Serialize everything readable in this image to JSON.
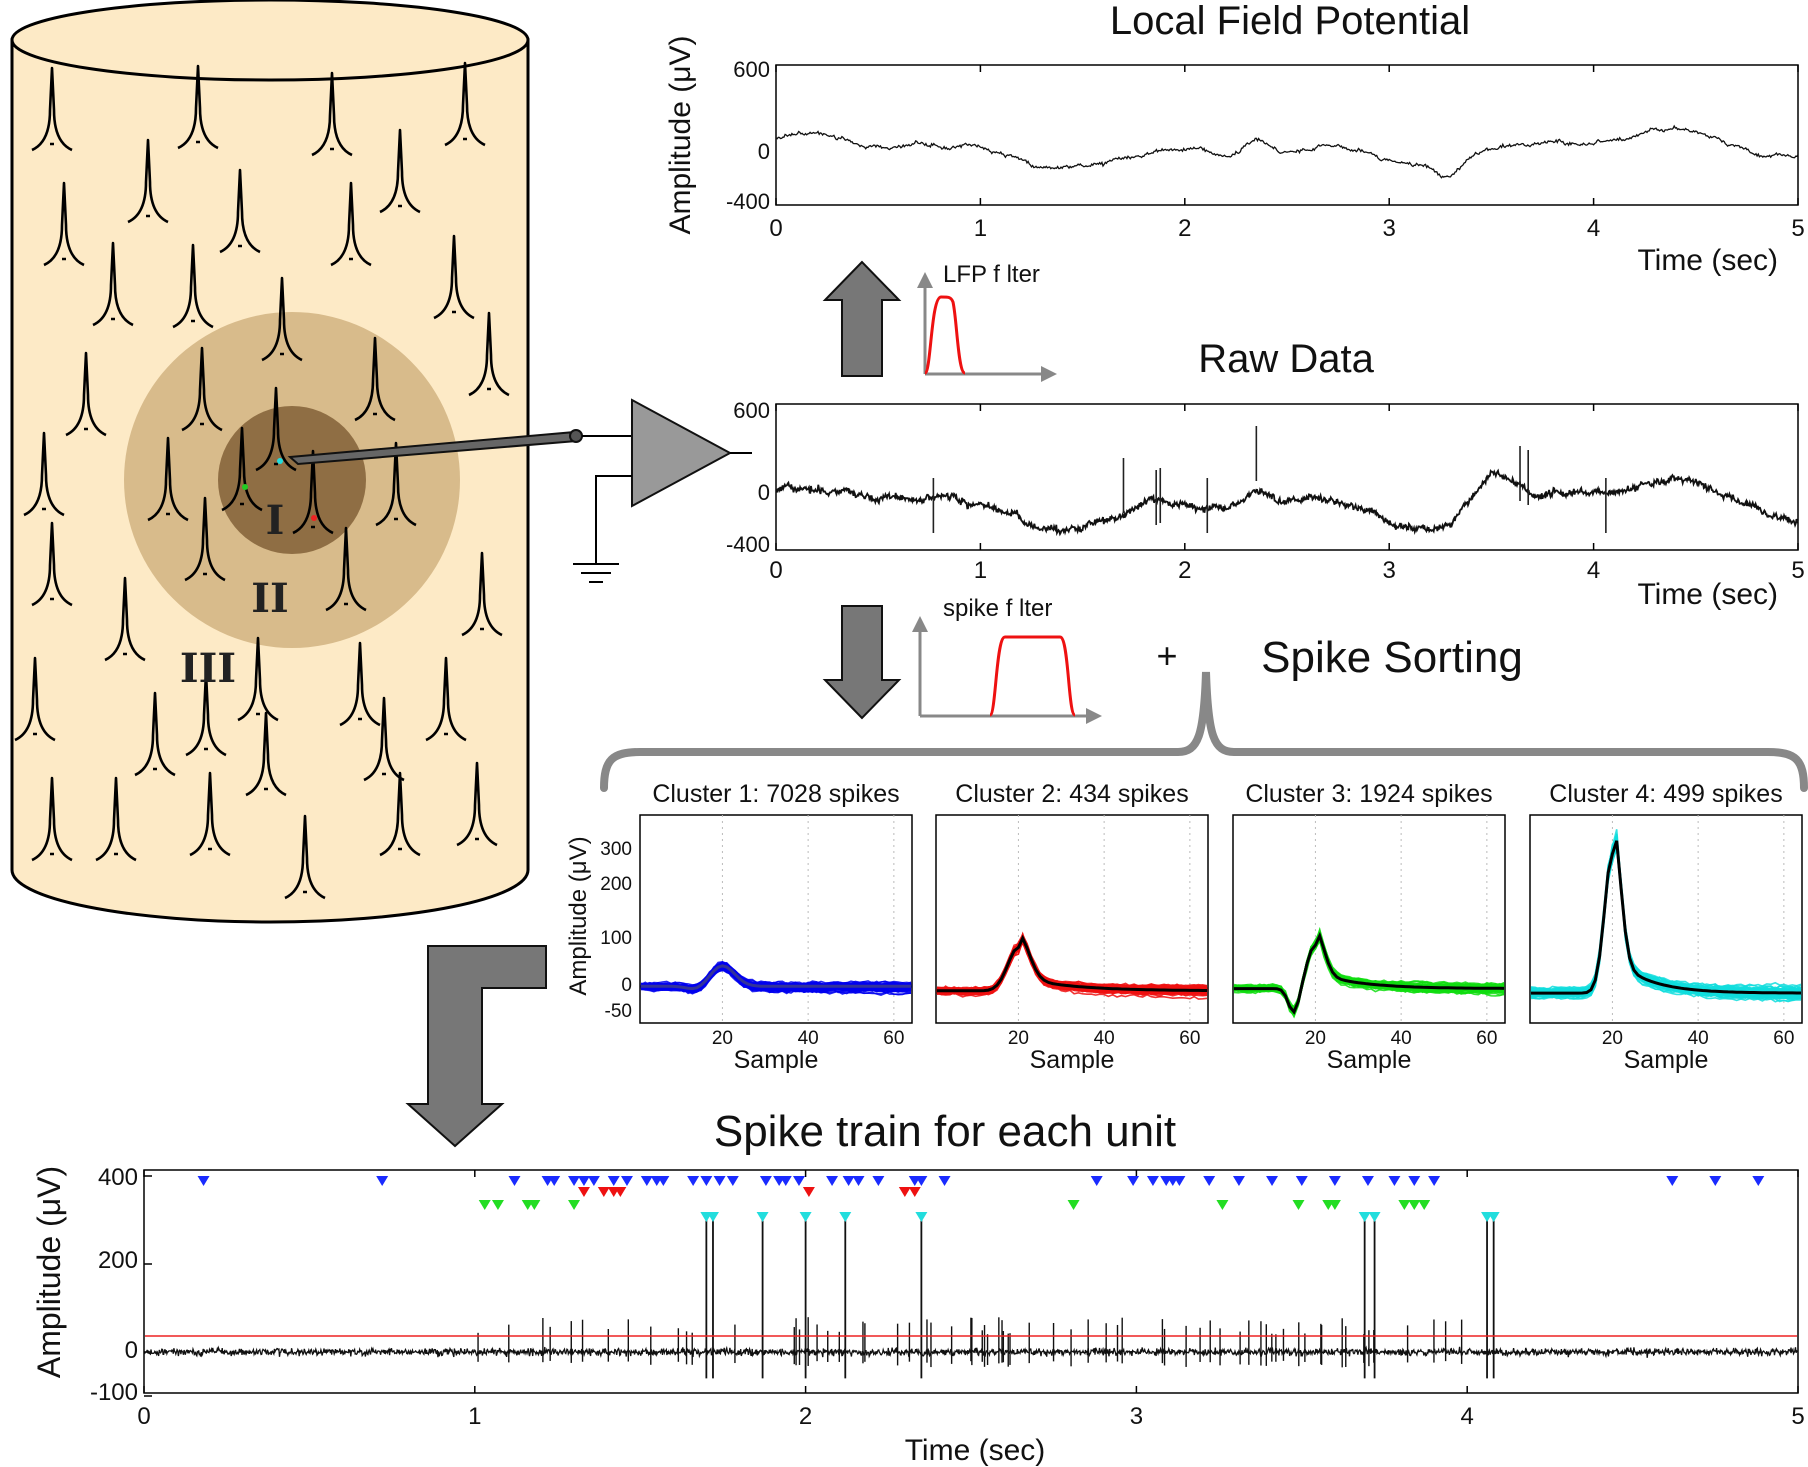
{
  "lfp": {
    "title": "Local Field Potential",
    "ylabel": "Amplitude (μV)",
    "xlabel": "Time (sec)",
    "yticks": [
      "600",
      "0",
      "-400"
    ],
    "xticks": [
      "0",
      "1",
      "2",
      "3",
      "4",
      "5"
    ]
  },
  "raw": {
    "title": "Raw Data",
    "yticks": [
      "600",
      "0",
      "-400"
    ],
    "xticks": [
      "0",
      "1",
      "2",
      "3",
      "4",
      "5"
    ],
    "xlabel": "Time (sec)"
  },
  "filters": {
    "lfp_label": "LFP f lter",
    "spike_label": "spike f lter"
  },
  "sorting": {
    "plus": "+",
    "title": "Spike Sorting",
    "ylabel": "Amplitude (μV)",
    "xlabel": "Sample",
    "yticks": [
      "300",
      "200",
      "100",
      "0",
      "-50"
    ],
    "xticks": [
      "20",
      "40",
      "60"
    ],
    "clusters": [
      {
        "title": "Cluster 1: 7028 spikes",
        "color": "#0000ee",
        "mean": "#333399",
        "shape": "small"
      },
      {
        "title": "Cluster 2: 434 spikes",
        "color": "#ee1111",
        "mean": "#000000",
        "shape": "medium"
      },
      {
        "title": "Cluster 3: 1924 spikes",
        "color": "#11dd11",
        "mean": "#000000",
        "shape": "biphasic"
      },
      {
        "title": "Cluster 4: 499 spikes",
        "color": "#11dddd",
        "mean": "#000000",
        "shape": "large"
      }
    ]
  },
  "zones": {
    "z1": "I",
    "z2": "II",
    "z3": "III"
  },
  "train": {
    "title": "Spike train for each unit",
    "ylabel": "Amplitude (μV)",
    "xlabel": "Time (sec)",
    "yticks": [
      "400",
      "200",
      "0",
      "-100"
    ],
    "xticks": [
      "0",
      "1",
      "2",
      "3",
      "4",
      "5"
    ],
    "threshold_color": "#ee2222",
    "units": [
      {
        "color": "#1a2bff",
        "times": [
          0.18,
          0.72,
          1.12,
          1.22,
          1.24,
          1.3,
          1.33,
          1.36,
          1.42,
          1.46,
          1.52,
          1.55,
          1.57,
          1.66,
          1.7,
          1.74,
          1.78,
          1.88,
          1.92,
          1.94,
          1.98,
          2.08,
          2.13,
          2.16,
          2.22,
          2.33,
          2.35,
          2.42,
          2.88,
          2.99,
          3.05,
          3.09,
          3.11,
          3.13,
          3.22,
          3.31,
          3.41,
          3.5,
          3.6,
          3.7,
          3.78,
          3.84,
          3.9,
          4.62,
          4.75,
          4.88
        ]
      },
      {
        "color": "#ee1111",
        "times": [
          1.33,
          1.39,
          1.42,
          1.44,
          2.01,
          2.3,
          2.33
        ]
      },
      {
        "color": "#22dd22",
        "times": [
          1.03,
          1.07,
          1.16,
          1.18,
          1.3,
          2.81,
          3.26,
          3.49,
          3.58,
          3.6,
          3.81,
          3.84,
          3.87
        ]
      },
      {
        "color": "#22dddd",
        "times": [
          1.7,
          1.72,
          1.87,
          2.0,
          2.12,
          2.35,
          3.69,
          3.72,
          4.06,
          4.08
        ]
      }
    ],
    "big_spikes": [
      1.7,
      1.72,
      1.87,
      2.0,
      2.12,
      2.35,
      3.69,
      3.72,
      4.06,
      4.08
    ]
  }
}
